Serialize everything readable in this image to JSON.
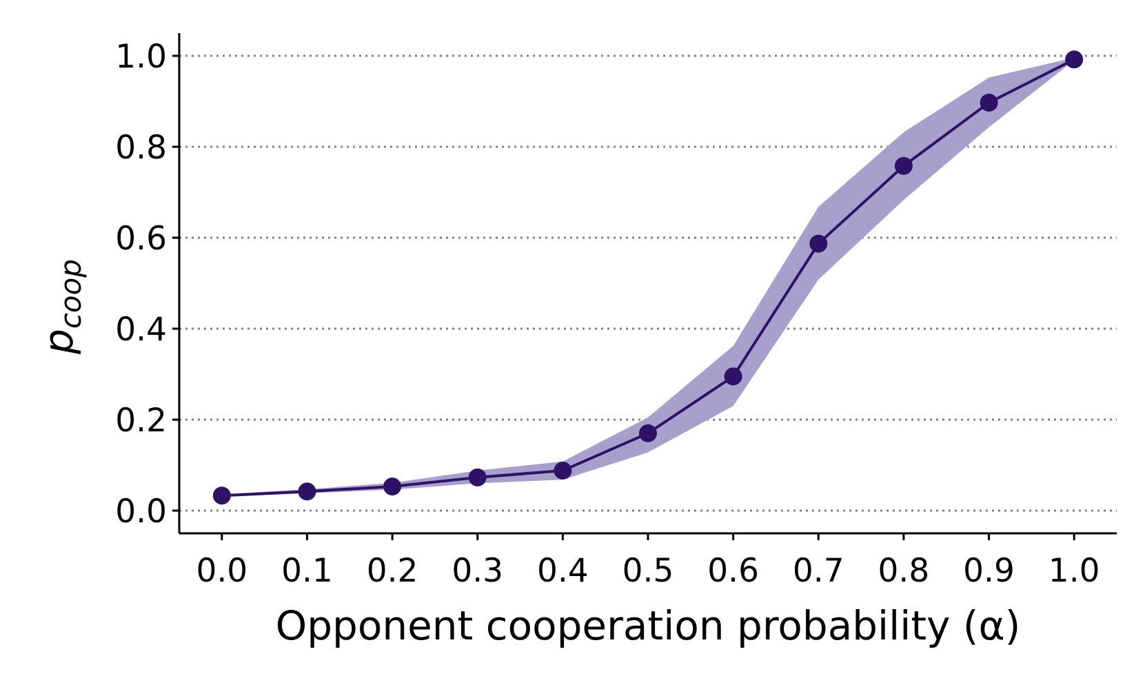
{
  "chart_data": {
    "type": "line",
    "title": "",
    "xlabel": "Opponent cooperation probability (α)",
    "ylabel": {
      "main": "p",
      "subscript": "coop"
    },
    "x": [
      0.0,
      0.1,
      0.2,
      0.3,
      0.4,
      0.5,
      0.6,
      0.7,
      0.8,
      0.9,
      1.0
    ],
    "xticks": [
      "0.0",
      "0.1",
      "0.2",
      "0.3",
      "0.4",
      "0.5",
      "0.6",
      "0.7",
      "0.8",
      "0.9",
      "1.0"
    ],
    "yticks": [
      "0.0",
      "0.2",
      "0.4",
      "0.6",
      "0.8",
      "1.0"
    ],
    "xlim": [
      -0.05,
      1.05
    ],
    "ylim": [
      -0.05,
      1.05
    ],
    "grid": "horizontal dotted",
    "series": [
      {
        "values": [
          0.033,
          0.042,
          0.053,
          0.073,
          0.088,
          0.17,
          0.295,
          0.587,
          0.758,
          0.897,
          0.992
        ],
        "lower": [
          0.03,
          0.038,
          0.046,
          0.06,
          0.068,
          0.128,
          0.23,
          0.508,
          0.683,
          0.843,
          0.99
        ],
        "upper": [
          0.036,
          0.047,
          0.061,
          0.088,
          0.108,
          0.205,
          0.362,
          0.668,
          0.832,
          0.952,
          0.996
        ]
      }
    ],
    "colors": {
      "line": "#2d1266",
      "band": "#a79fcc",
      "grid": "#808080"
    }
  }
}
